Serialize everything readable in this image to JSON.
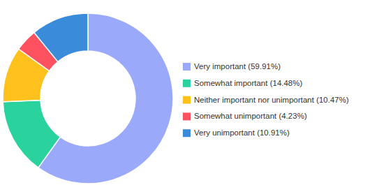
{
  "chart_data": {
    "type": "donut",
    "categories": [
      "Very important (59.91%)",
      "Somewhat important (14.48%)",
      "Neither important nor unimportant (10.47%)",
      "Somewhat unimportant (4.23%)",
      "Very unimportant (10.91%)"
    ],
    "values": [
      59.91,
      14.48,
      10.47,
      4.23,
      10.91
    ],
    "colors": [
      "#9ba9fb",
      "#2ad39d",
      "#ffc21c",
      "#ff5261",
      "#3a8bd9"
    ],
    "legend": "right"
  }
}
